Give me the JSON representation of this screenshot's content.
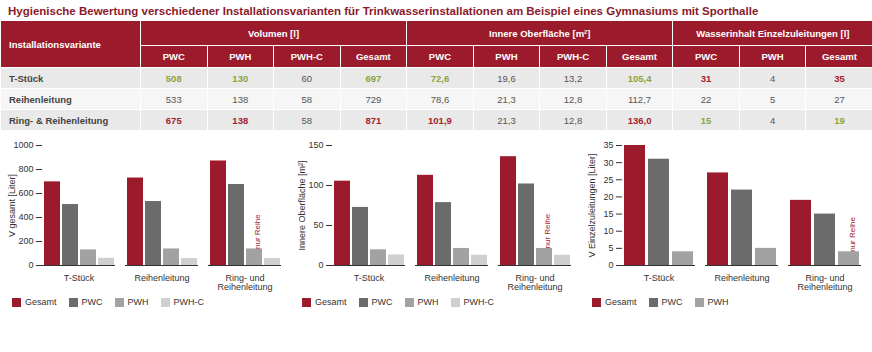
{
  "title": "Hygienische Bewertung verschiedener Installationsvarianten für Trinkwasserinstallationen am Beispiel eines Gymnasiums mit Sporthalle",
  "table": {
    "header": {
      "first": "Installationsvariante",
      "groups": [
        {
          "title": "Volumen [l]",
          "columns": [
            "PWC",
            "PWH",
            "PWH-C",
            "Gesamt"
          ]
        },
        {
          "title": "Innere Oberfläche [m²]",
          "columns": [
            "PWC",
            "PWH",
            "PWH-C",
            "Gesamt"
          ]
        },
        {
          "title": "Wasserinhalt Einzelzuleitungen [l]",
          "columns": [
            "PWC",
            "PWH",
            "Gesamt"
          ]
        }
      ]
    },
    "rows": [
      {
        "label": "T-Stück",
        "cells": [
          {
            "text": "508",
            "color": "#8da33b"
          },
          {
            "text": "130",
            "color": "#8da33b"
          },
          {
            "text": "60"
          },
          {
            "text": "697",
            "color": "#8da33b"
          },
          {
            "text": "72,6",
            "color": "#8da33b"
          },
          {
            "text": "19,6"
          },
          {
            "text": "13,2"
          },
          {
            "text": "105,4",
            "color": "#8da33b"
          },
          {
            "text": "31",
            "color": "#a3222f"
          },
          {
            "text": "4"
          },
          {
            "text": "35",
            "color": "#a3222f"
          }
        ]
      },
      {
        "label": "Reihenleitung",
        "cells": [
          {
            "text": "533"
          },
          {
            "text": "138"
          },
          {
            "text": "58"
          },
          {
            "text": "729"
          },
          {
            "text": "78,6"
          },
          {
            "text": "21,3"
          },
          {
            "text": "12,8"
          },
          {
            "text": "112,7"
          },
          {
            "text": "22"
          },
          {
            "text": "5"
          },
          {
            "text": "27"
          }
        ]
      },
      {
        "label": "Ring- & Reihenleitung",
        "cells": [
          {
            "text": "675",
            "color": "#a3222f"
          },
          {
            "text": "138",
            "color": "#a3222f"
          },
          {
            "text": "58"
          },
          {
            "text": "871",
            "color": "#a3222f"
          },
          {
            "text": "101,9",
            "color": "#a3222f"
          },
          {
            "text": "21,3"
          },
          {
            "text": "12,8"
          },
          {
            "text": "136,0",
            "color": "#a3222f"
          },
          {
            "text": "15",
            "color": "#8da33b"
          },
          {
            "text": "4"
          },
          {
            "text": "19",
            "color": "#8da33b"
          }
        ]
      }
    ]
  },
  "chart_data": [
    {
      "type": "bar",
      "ylabel": "V gesamt [Liter]",
      "categories": [
        "T-Stück",
        "Reihenleitung",
        "Ring- und Reihenleitung"
      ],
      "series": [
        {
          "name": "Gesamt",
          "color": "#9b1b2c",
          "values": [
            697,
            729,
            871
          ]
        },
        {
          "name": "PWC",
          "color": "#6b6b6b",
          "values": [
            508,
            533,
            675
          ]
        },
        {
          "name": "PWH",
          "color": "#a2a2a2",
          "values": [
            130,
            138,
            138
          ]
        },
        {
          "name": "PWH-C",
          "color": "#cfcfcf",
          "values": [
            60,
            58,
            58
          ]
        }
      ],
      "ylim": [
        0,
        1000
      ],
      "yticks": [
        0,
        200,
        400,
        600,
        800,
        1000
      ],
      "legend": "bottom",
      "annotations": [
        {
          "text": "nur Reihe",
          "category": "Ring- und Reihenleitung",
          "series": "PWH"
        }
      ]
    },
    {
      "type": "bar",
      "ylabel": "Innere Oberfläche [m²]",
      "categories": [
        "T-Stück",
        "Reihenleitung",
        "Ring- und Reihenleitung"
      ],
      "series": [
        {
          "name": "Gesamt",
          "color": "#9b1b2c",
          "values": [
            105.4,
            112.7,
            136.0
          ]
        },
        {
          "name": "PWC",
          "color": "#6b6b6b",
          "values": [
            72.6,
            78.6,
            101.9
          ]
        },
        {
          "name": "PWH",
          "color": "#a2a2a2",
          "values": [
            19.6,
            21.3,
            21.3
          ]
        },
        {
          "name": "PWH-C",
          "color": "#cfcfcf",
          "values": [
            13.2,
            12.8,
            12.8
          ]
        }
      ],
      "ylim": [
        0,
        150
      ],
      "yticks": [
        0,
        50,
        100,
        150
      ],
      "legend": "bottom",
      "annotations": [
        {
          "text": "nur Reihe",
          "category": "Ring- und Reihenleitung",
          "series": "PWH"
        }
      ]
    },
    {
      "type": "bar",
      "ylabel": "V Einzelzuleitungen [Liter]",
      "categories": [
        "T-Stück",
        "Reihenleitung",
        "Ring- und Reihenleitung"
      ],
      "series": [
        {
          "name": "Gesamt",
          "color": "#9b1b2c",
          "values": [
            35,
            27,
            19
          ]
        },
        {
          "name": "PWC",
          "color": "#6b6b6b",
          "values": [
            31,
            22,
            15
          ]
        },
        {
          "name": "PWH",
          "color": "#a2a2a2",
          "values": [
            4,
            5,
            4
          ]
        }
      ],
      "ylim": [
        0,
        35
      ],
      "yticks": [
        0,
        5,
        10,
        15,
        20,
        25,
        30,
        35
      ],
      "legend": "bottom",
      "annotations": [
        {
          "text": "nur Reihe",
          "category": "Ring- und Reihenleitung",
          "series": "PWH"
        }
      ]
    }
  ]
}
